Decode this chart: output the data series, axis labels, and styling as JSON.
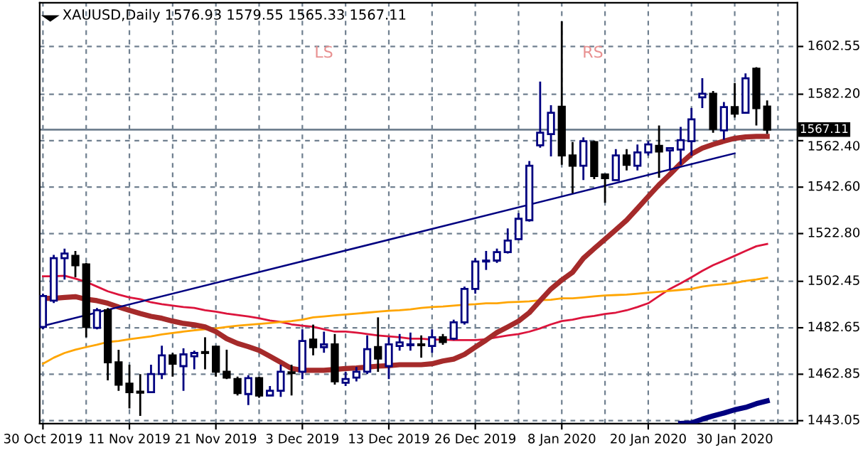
{
  "chart_data": {
    "type": "candlestick",
    "title": "XAUUSD,Daily 1576.93 1579.55 1565.33 1567.11",
    "categories": [
      "30 Oct 2019",
      null,
      null,
      null,
      null,
      null,
      null,
      null,
      "11 Nov 2019",
      null,
      null,
      null,
      null,
      null,
      null,
      null,
      "21 Nov 2019",
      null,
      null,
      null,
      null,
      null,
      null,
      null,
      "3 Dec 2019",
      null,
      null,
      null,
      null,
      null,
      null,
      null,
      "13 Dec 2019",
      null,
      null,
      null,
      null,
      null,
      null,
      null,
      "26 Dec 2019",
      null,
      null,
      null,
      null,
      null,
      null,
      null,
      "8 Jan 2020",
      null,
      null,
      null,
      null,
      null,
      null,
      null,
      "20 Jan 2020",
      null,
      null,
      null,
      null,
      null,
      null,
      null,
      "30 Jan 2020",
      null,
      null,
      null
    ],
    "ohlc": [
      [
        1483.0,
        1497.2,
        1482.0,
        1496.2
      ],
      [
        1494.2,
        1513.7,
        1493.2,
        1512.3
      ],
      [
        1512.3,
        1516.4,
        1503.2,
        1514.3
      ],
      [
        1513.3,
        1515.4,
        1504.2,
        1509.3
      ],
      [
        1509.7,
        1510.3,
        1478.6,
        1483.0
      ],
      [
        1482.6,
        1491.1,
        1482.0,
        1490.1
      ],
      [
        1490.1,
        1491.1,
        1460.2,
        1467.9
      ],
      [
        1467.9,
        1473.3,
        1455.8,
        1458.4
      ],
      [
        1458.8,
        1466.9,
        1448.3,
        1455.2
      ],
      [
        1455.4,
        1462.9,
        1445.1,
        1455.0
      ],
      [
        1455.2,
        1466.9,
        1454.8,
        1462.9
      ],
      [
        1462.9,
        1475.0,
        1460.8,
        1470.9
      ],
      [
        1470.9,
        1471.9,
        1461.8,
        1467.3
      ],
      [
        1466.3,
        1473.9,
        1455.8,
        1471.3
      ],
      [
        1470.5,
        1472.9,
        1464.9,
        1471.9
      ],
      [
        1472.3,
        1478.6,
        1464.9,
        1471.9
      ],
      [
        1474.6,
        1475.0,
        1461.8,
        1463.9
      ],
      [
        1463.9,
        1473.3,
        1460.8,
        1461.4
      ],
      [
        1460.8,
        1461.8,
        1453.8,
        1454.8
      ],
      [
        1454.4,
        1462.4,
        1449.7,
        1461.2
      ],
      [
        1461.2,
        1461.8,
        1452.8,
        1453.8
      ],
      [
        1453.8,
        1457.8,
        1453.8,
        1455.8
      ],
      [
        1455.8,
        1466.9,
        1453.2,
        1463.9
      ],
      [
        1463.7,
        1466.9,
        1453.8,
        1463.3
      ],
      [
        1463.9,
        1482.0,
        1460.8,
        1477.0
      ],
      [
        1477.6,
        1484.0,
        1470.9,
        1474.4
      ],
      [
        1474.4,
        1481.0,
        1472.0,
        1475.6
      ],
      [
        1475.6,
        1480.0,
        1458.4,
        1459.8
      ],
      [
        1459.2,
        1463.9,
        1457.8,
        1460.8
      ],
      [
        1461.4,
        1465.9,
        1459.8,
        1463.9
      ],
      [
        1463.9,
        1479.4,
        1462.9,
        1473.5
      ],
      [
        1474.4,
        1487.1,
        1463.9,
        1469.5
      ],
      [
        1466.3,
        1478.6,
        1460.8,
        1475.6
      ],
      [
        1474.9,
        1480.0,
        1472.9,
        1476.4
      ],
      [
        1475.2,
        1480.6,
        1472.9,
        1475.6
      ],
      [
        1475.6,
        1479.4,
        1469.9,
        1475.2
      ],
      [
        1474.9,
        1482.0,
        1472.0,
        1478.6
      ],
      [
        1478.6,
        1480.0,
        1475.4,
        1476.6
      ],
      [
        1478.0,
        1486.1,
        1477.4,
        1485.0
      ],
      [
        1485.0,
        1500.2,
        1484.0,
        1499.2
      ],
      [
        1499.2,
        1512.3,
        1497.2,
        1510.9
      ],
      [
        1510.9,
        1515.4,
        1507.3,
        1511.3
      ],
      [
        1511.3,
        1516.4,
        1510.3,
        1514.9
      ],
      [
        1514.9,
        1525.0,
        1514.3,
        1519.8
      ],
      [
        1520.4,
        1531.5,
        1520.0,
        1529.1
      ],
      [
        1528.5,
        1553.7,
        1527.9,
        1551.7
      ],
      [
        1560.4,
        1587.6,
        1559.4,
        1565.8
      ],
      [
        1565.2,
        1577.5,
        1555.7,
        1574.3
      ],
      [
        1576.9,
        1613.3,
        1552.1,
        1556.1
      ],
      [
        1556.1,
        1561.8,
        1540.0,
        1551.7
      ],
      [
        1551.7,
        1563.8,
        1545.6,
        1562.2
      ],
      [
        1561.8,
        1562.4,
        1546.0,
        1547.3
      ],
      [
        1548.0,
        1548.0,
        1535.9,
        1546.4
      ],
      [
        1545.6,
        1558.8,
        1545.6,
        1556.1
      ],
      [
        1556.1,
        1558.8,
        1549.7,
        1552.1
      ],
      [
        1551.7,
        1560.8,
        1549.7,
        1557.4
      ],
      [
        1557.4,
        1562.2,
        1556.1,
        1560.8
      ],
      [
        1560.2,
        1568.9,
        1546.6,
        1557.8
      ],
      [
        1558.2,
        1559.2,
        1549.7,
        1559.2
      ],
      [
        1558.6,
        1568.3,
        1552.1,
        1562.6
      ],
      [
        1562.2,
        1576.3,
        1556.1,
        1571.5
      ],
      [
        1580.9,
        1589.0,
        1576.3,
        1582.4
      ],
      [
        1582.4,
        1583.6,
        1565.8,
        1567.4
      ],
      [
        1566.8,
        1578.9,
        1562.8,
        1576.7
      ],
      [
        1576.7,
        1587.0,
        1572.3,
        1573.9
      ],
      [
        1574.3,
        1591.1,
        1573.9,
        1589.0
      ],
      [
        1593.1,
        1593.7,
        1568.9,
        1576.3
      ],
      [
        1576.93,
        1579.55,
        1565.33,
        1567.11
      ]
    ],
    "colors": [
      "#000080",
      "#000080",
      "#000080",
      "#000000",
      "#000000",
      "#000080",
      "#000000",
      "#000000",
      "#000000",
      "#000000",
      "#000080",
      "#000080",
      "#000000",
      "#000080",
      "#000080",
      "#000000",
      "#000000",
      "#000000",
      "#000000",
      "#000080",
      "#000000",
      "#000080",
      "#000080",
      "#000000",
      "#000080",
      "#000000",
      "#000080",
      "#000000",
      "#000080",
      "#000080",
      "#000080",
      "#000000",
      "#000080",
      "#000080",
      "#000080",
      "#000000",
      "#000080",
      "#000000",
      "#000080",
      "#000080",
      "#000080",
      "#000080",
      "#000080",
      "#000080",
      "#000080",
      "#000080",
      "#000080",
      "#000080",
      "#000000",
      "#000000",
      "#000080",
      "#000000",
      "#000000",
      "#000080",
      "#000000",
      "#000080",
      "#000080",
      "#000000",
      "#000080",
      "#000080",
      "#000080",
      "#000080",
      "#000000",
      "#000080",
      "#000000",
      "#000080",
      "#000000",
      "#000000"
    ],
    "series": [
      {
        "type": "line",
        "color": "#dc143c",
        "values": [
          1504.6,
          1504.6,
          1504.8,
          1503.6,
          1502.2,
          1500.2,
          1498.2,
          1496.8,
          1495.6,
          1494.8,
          1493.5,
          1492.7,
          1492.1,
          1491.5,
          1491.1,
          1490.1,
          1489.5,
          1488.7,
          1488.1,
          1487.5,
          1486.7,
          1485.7,
          1485.1,
          1484.1,
          1483.5,
          1483.1,
          1482.0,
          1481.0,
          1481.0,
          1480.6,
          1480.0,
          1479.4,
          1479.0,
          1478.6,
          1478.0,
          1478.0,
          1477.6,
          1477.6,
          1477.4,
          1477.4,
          1477.4,
          1477.8,
          1478.6,
          1479.4,
          1480.0,
          1481.0,
          1482.4,
          1484.1,
          1485.5,
          1486.1,
          1487.1,
          1487.7,
          1488.5,
          1489.1,
          1490.1,
          1491.5,
          1493.1,
          1496.2,
          1499.2,
          1501.6,
          1504.2,
          1506.9,
          1509.3,
          1511.3,
          1513.3,
          1515.4,
          1517.4,
          1518.4
        ]
      },
      {
        "type": "line",
        "color": "#ffa500",
        "values": [
          1467.3,
          1469.9,
          1471.9,
          1473.3,
          1474.4,
          1475.4,
          1476.6,
          1477.0,
          1477.8,
          1478.4,
          1479.0,
          1479.8,
          1480.4,
          1481.0,
          1481.6,
          1482.0,
          1482.4,
          1483.0,
          1483.5,
          1483.9,
          1484.3,
          1484.7,
          1485.1,
          1485.5,
          1486.1,
          1487.1,
          1487.5,
          1487.9,
          1488.3,
          1488.7,
          1489.1,
          1489.5,
          1489.9,
          1490.1,
          1490.5,
          1491.1,
          1491.5,
          1491.7,
          1492.1,
          1492.5,
          1492.7,
          1493.1,
          1493.1,
          1493.5,
          1493.7,
          1493.9,
          1494.4,
          1494.6,
          1495.2,
          1495.2,
          1495.6,
          1496.0,
          1496.4,
          1496.6,
          1496.8,
          1497.2,
          1497.6,
          1498.0,
          1498.4,
          1498.8,
          1499.2,
          1500.2,
          1500.8,
          1501.2,
          1501.8,
          1502.6,
          1503.2,
          1504.0
        ]
      },
      {
        "type": "line",
        "color": "#a52a2a",
        "values": [
          1495.2,
          1495.2,
          1495.6,
          1495.9,
          1494.8,
          1494.2,
          1493.1,
          1491.5,
          1490.1,
          1488.7,
          1487.5,
          1486.7,
          1485.5,
          1484.5,
          1483.9,
          1483.0,
          1481.0,
          1478.0,
          1476.0,
          1474.6,
          1473.0,
          1470.5,
          1467.9,
          1465.3,
          1464.5,
          1464.5,
          1464.5,
          1464.9,
          1465.3,
          1465.5,
          1465.9,
          1466.3,
          1466.5,
          1466.9,
          1466.9,
          1466.9,
          1467.3,
          1468.5,
          1469.3,
          1471.3,
          1474.4,
          1477.4,
          1480.6,
          1483.0,
          1485.5,
          1489.1,
          1494.2,
          1499.2,
          1503.0,
          1506.3,
          1512.3,
          1516.4,
          1520.4,
          1524.4,
          1528.5,
          1533.5,
          1538.6,
          1543.6,
          1548.0,
          1552.7,
          1556.7,
          1559.2,
          1560.8,
          1562.2,
          1563.4,
          1564.0,
          1564.2,
          1564.2
        ]
      },
      {
        "type": "line",
        "color": "#000080",
        "values": [
          null,
          null,
          null,
          null,
          null,
          null,
          null,
          null,
          null,
          null,
          null,
          null,
          null,
          null,
          null,
          null,
          null,
          null,
          null,
          null,
          null,
          null,
          null,
          null,
          null,
          null,
          null,
          null,
          null,
          null,
          null,
          null,
          null,
          null,
          null,
          null,
          null,
          null,
          null,
          null,
          null,
          null,
          null,
          null,
          null,
          null,
          null,
          null,
          null,
          null,
          null,
          null,
          null,
          null,
          null,
          null,
          null,
          null,
          null,
          1441.9,
          1442.1,
          1443.7,
          1445.1,
          1446.3,
          1447.7,
          1448.7,
          1450.3,
          1451.5
        ]
      },
      {
        "type": "line",
        "color": "#000080",
        "x": [
          "30 Oct 2019",
          "30 Jan 2020"
        ],
        "values": [
          1483.4,
          1557.0
        ]
      }
    ],
    "ref_lines": [
      {
        "axis": "y",
        "value": 1567.11,
        "label": "1567.11",
        "color": "#708090"
      }
    ],
    "annotations": [
      "LS",
      "RS"
    ],
    "ylim": [
      1441.8,
      1621.2
    ],
    "yticks": [
      1602.55,
      {
        "value": 1582.2,
        "label": "1582.20"
      },
      {
        "value": 1562.4,
        "label": "1562.40"
      },
      {
        "value": 1542.6,
        "label": "1542.60"
      },
      {
        "value": 1522.8,
        "label": "1522.80"
      },
      1502.45,
      1482.65,
      1462.85,
      1443.05
    ],
    "grid": true
  }
}
